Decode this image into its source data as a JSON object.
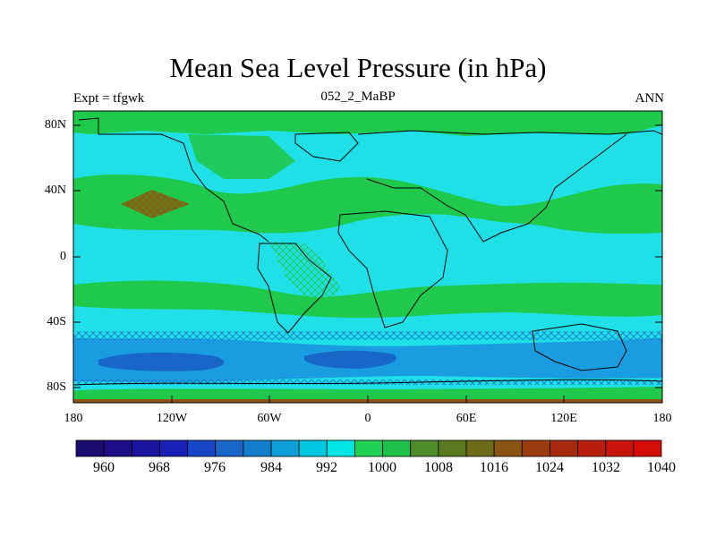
{
  "title": "Mean Sea Level Pressure (in hPa)",
  "left_label": "Expt = tfgwk",
  "center_label": "052_2_MaBP",
  "right_label": "ANN",
  "map": {
    "projection": "cylindrical-equidistant",
    "lon_range": [
      -180,
      180
    ],
    "lat_range": [
      -90,
      90
    ],
    "x_tick_labels": [
      "180",
      "120W",
      "60W",
      "0",
      "60E",
      "120E",
      "180"
    ],
    "y_tick_labels": [
      "80N",
      "40N",
      "0",
      "40S",
      "80S"
    ],
    "regions": {
      "ocean_base": "992-1000",
      "subtropical_high_north": "1000-1008",
      "subtropical_high_south": "1000-1008",
      "pacific_high_core": "1016-1024",
      "southern_low_trough": "984-992",
      "southern_low_core": "976-984"
    }
  },
  "colorbar": {
    "labels": [
      "960",
      "968",
      "976",
      "984",
      "992",
      "1000",
      "1008",
      "1016",
      "1024",
      "1032",
      "1040"
    ],
    "colors": [
      "#1a0b6e",
      "#1d0d87",
      "#19149e",
      "#1a1fb5",
      "#1844c6",
      "#1766c8",
      "#127ecb",
      "#0e9fd6",
      "#00c8e0",
      "#00e6e6",
      "#1fd055",
      "#1fc04a",
      "#4e8d2a",
      "#5a7a1f",
      "#6d6a18",
      "#8a5514",
      "#9a3b10",
      "#a82a0e",
      "#b81e0c",
      "#c8140a",
      "#d60c08"
    ],
    "unit": "hPa"
  },
  "palette": {
    "ocean": "#1fe0e6",
    "high": "#1fc94c",
    "high_dark": "#1aa83f",
    "core": "#6a7a1a",
    "trough": "#1a9de0",
    "trough_dark": "#1766c8",
    "coast": "#000000"
  }
}
